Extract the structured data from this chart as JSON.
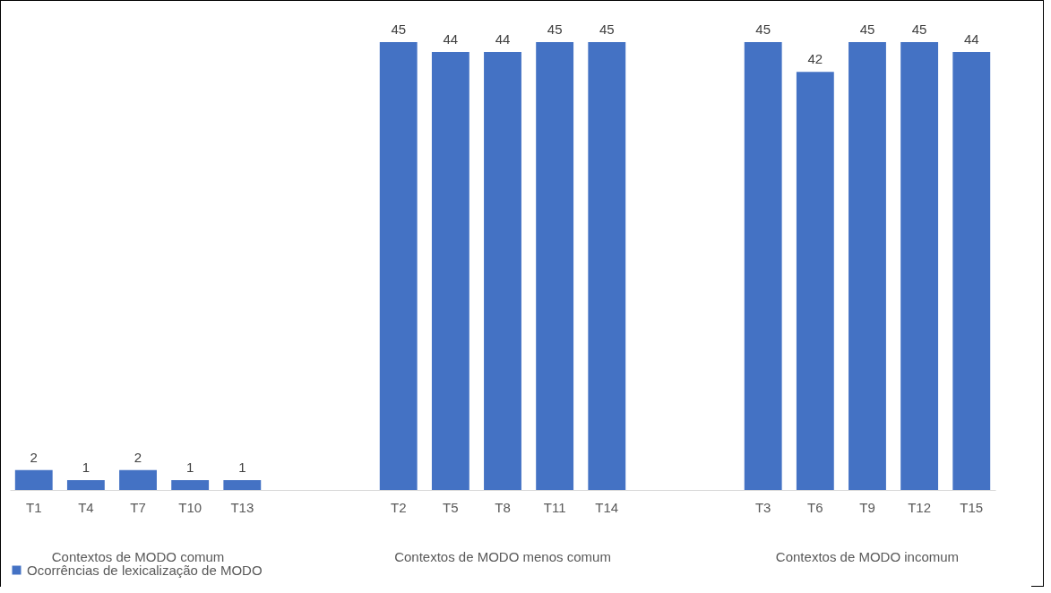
{
  "chart_data": {
    "type": "bar",
    "categories": [
      "T1",
      "T4",
      "T7",
      "T10",
      "T13",
      null,
      null,
      "T2",
      "T5",
      "T8",
      "T11",
      "T14",
      null,
      null,
      "T3",
      "T6",
      "T9",
      "T12",
      "T15"
    ],
    "series": [
      {
        "name": "Ocorrências de lexicalização de MODO",
        "color": "#4472c4",
        "values": [
          2,
          1,
          2,
          1,
          1,
          null,
          null,
          45,
          44,
          44,
          45,
          45,
          null,
          null,
          45,
          42,
          45,
          45,
          44
        ]
      }
    ],
    "annotations": [
      "Contextos de MODO comum",
      "Contextos de MODO menos comum",
      "Contextos de MODO incomum"
    ],
    "data_labels": true,
    "legend": "bottom",
    "grid": false
  }
}
